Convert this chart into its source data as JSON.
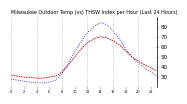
{
  "title": "Milwaukee Outdoor Temp (vs) THSW Index per Hour (Last 24 Hours)",
  "hours": [
    0,
    1,
    2,
    3,
    4,
    5,
    6,
    7,
    8,
    9,
    10,
    11,
    12,
    13,
    14,
    15,
    16,
    17,
    18,
    19,
    20,
    21,
    22,
    23
  ],
  "temp": [
    32,
    31,
    30,
    30,
    29,
    29,
    30,
    31,
    35,
    42,
    50,
    58,
    64,
    68,
    70,
    69,
    66,
    62,
    56,
    50,
    46,
    42,
    39,
    36
  ],
  "thsw": [
    28,
    27,
    26,
    25,
    25,
    24,
    25,
    27,
    34,
    44,
    55,
    65,
    74,
    80,
    84,
    82,
    76,
    68,
    58,
    50,
    44,
    39,
    35,
    31
  ],
  "temp_color": "#cc0000",
  "thsw_color": "#0000cc",
  "bg_color": "#ffffff",
  "grid_color": "#aaaaaa",
  "ylim_min": 20,
  "ylim_max": 90,
  "yticks": [
    30,
    40,
    50,
    60,
    70,
    80
  ],
  "ylabel_fontsize": 4,
  "title_fontsize": 3.5
}
